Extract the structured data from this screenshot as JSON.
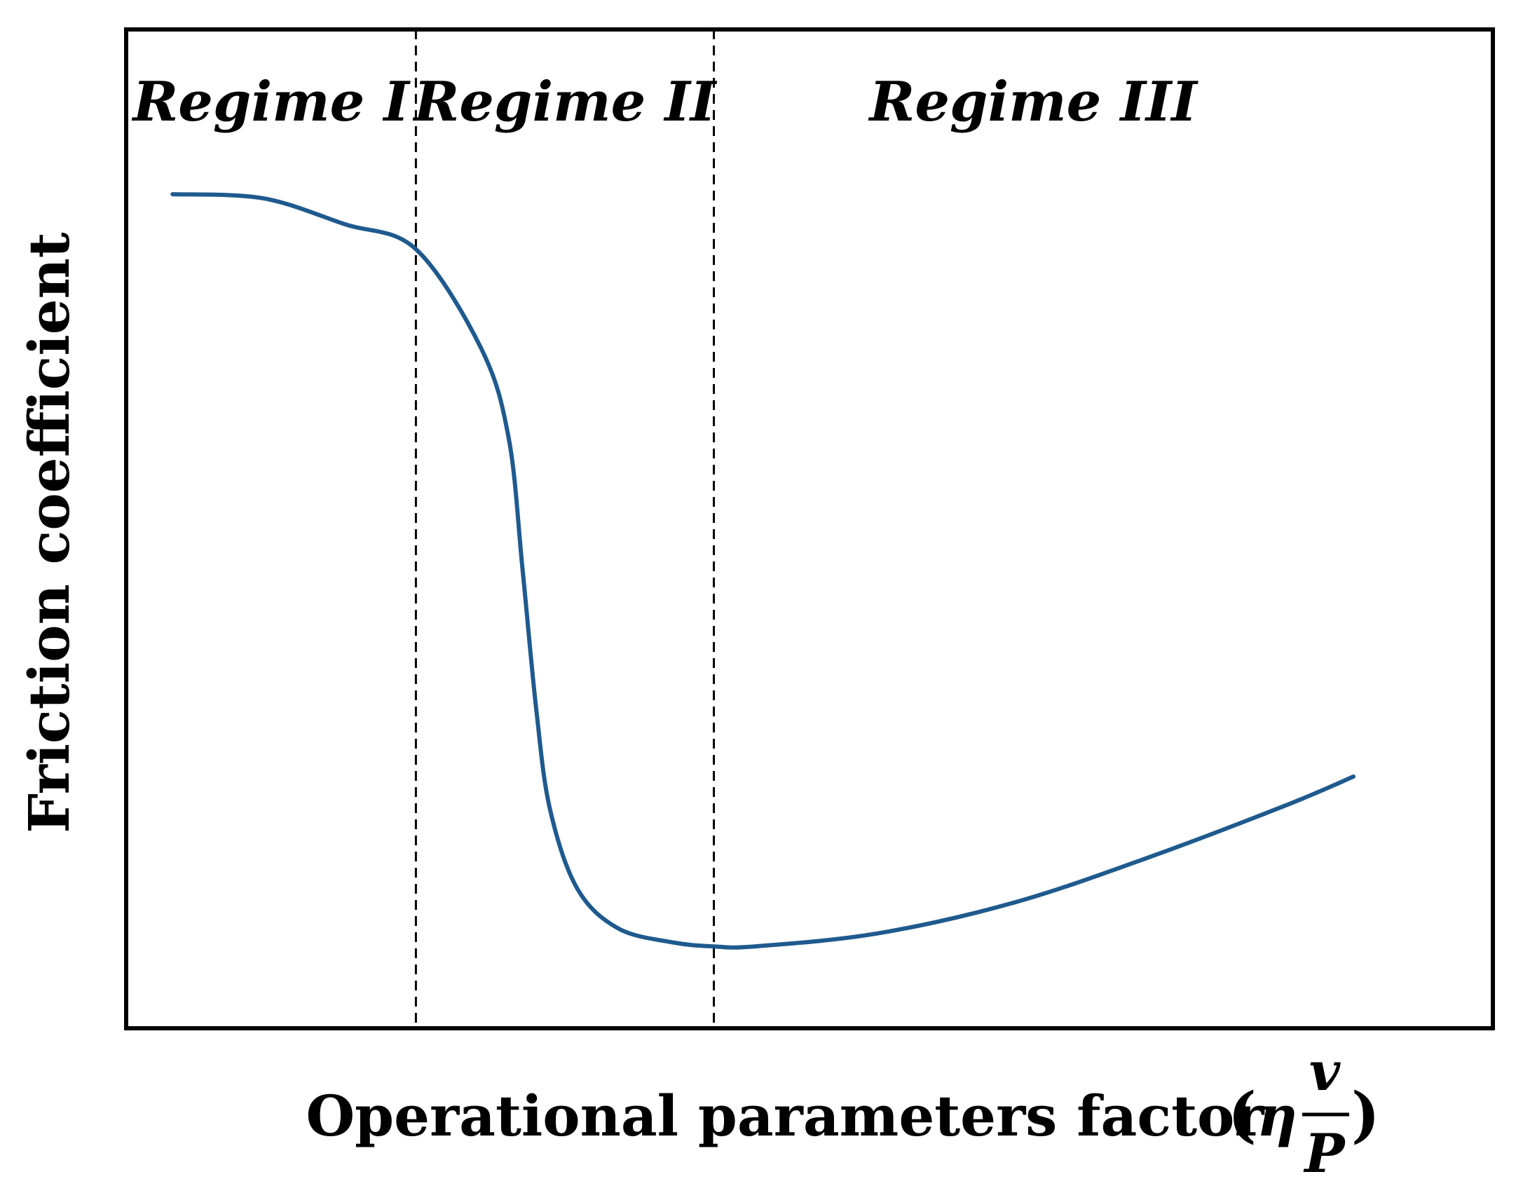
{
  "chart_data": {
    "type": "line",
    "xlabel": "Operational parameters factor",
    "xlabel_math": {
      "open": "(",
      "eta": "η",
      "numerator": "v",
      "denominator": "P",
      "close": ")"
    },
    "ylabel": "Friction coefficient",
    "xlim": [
      0,
      10
    ],
    "ylim": [
      0,
      10
    ],
    "ticks_shown": false,
    "grid": false,
    "regions": [
      {
        "label": "Regime I",
        "x_start": 0,
        "x_end": 2.12
      },
      {
        "label": "Regime II",
        "x_start": 2.12,
        "x_end": 4.3
      },
      {
        "label": "Regime III",
        "x_start": 4.3,
        "x_end": 10
      }
    ],
    "boundaries": [
      2.12,
      4.3
    ],
    "series": [
      {
        "color": "#1f5a8e",
        "x": [
          0.34,
          1.0,
          1.6,
          2.12,
          2.6,
          2.8,
          2.9,
          3.0,
          3.1,
          3.3,
          3.6,
          4.0,
          4.3,
          4.6,
          5.5,
          6.5,
          7.5,
          8.5,
          8.98
        ],
        "y": [
          8.35,
          8.31,
          8.05,
          7.8,
          6.8,
          5.9,
          4.6,
          3.2,
          2.2,
          1.4,
          1.0,
          0.86,
          0.82,
          0.82,
          0.95,
          1.26,
          1.72,
          2.24,
          2.52
        ]
      }
    ]
  }
}
